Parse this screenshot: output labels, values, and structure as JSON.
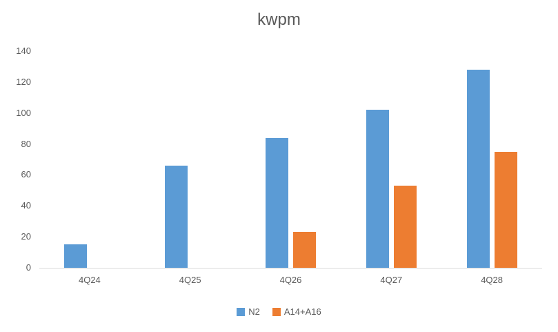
{
  "chart_data": {
    "type": "bar",
    "title": "kwpm",
    "categories": [
      "4Q24",
      "4Q25",
      "4Q26",
      "4Q27",
      "4Q28"
    ],
    "series": [
      {
        "name": "N2",
        "color": "#5B9BD5",
        "values": [
          15,
          66,
          84,
          102,
          128
        ]
      },
      {
        "name": "A14+A16",
        "color": "#ED7D31",
        "values": [
          0,
          0,
          23,
          53,
          75
        ]
      }
    ],
    "xlabel": "",
    "ylabel": "",
    "ylim": [
      0,
      140
    ],
    "ytick_step": 20,
    "ytick_labels": [
      "0",
      "20",
      "40",
      "60",
      "80",
      "100",
      "120",
      "140"
    ],
    "grid": false,
    "legend_position": "bottom",
    "colors": {
      "text": "#595959",
      "axis_line": "#D9D9D9",
      "background": "#FFFFFF"
    }
  }
}
